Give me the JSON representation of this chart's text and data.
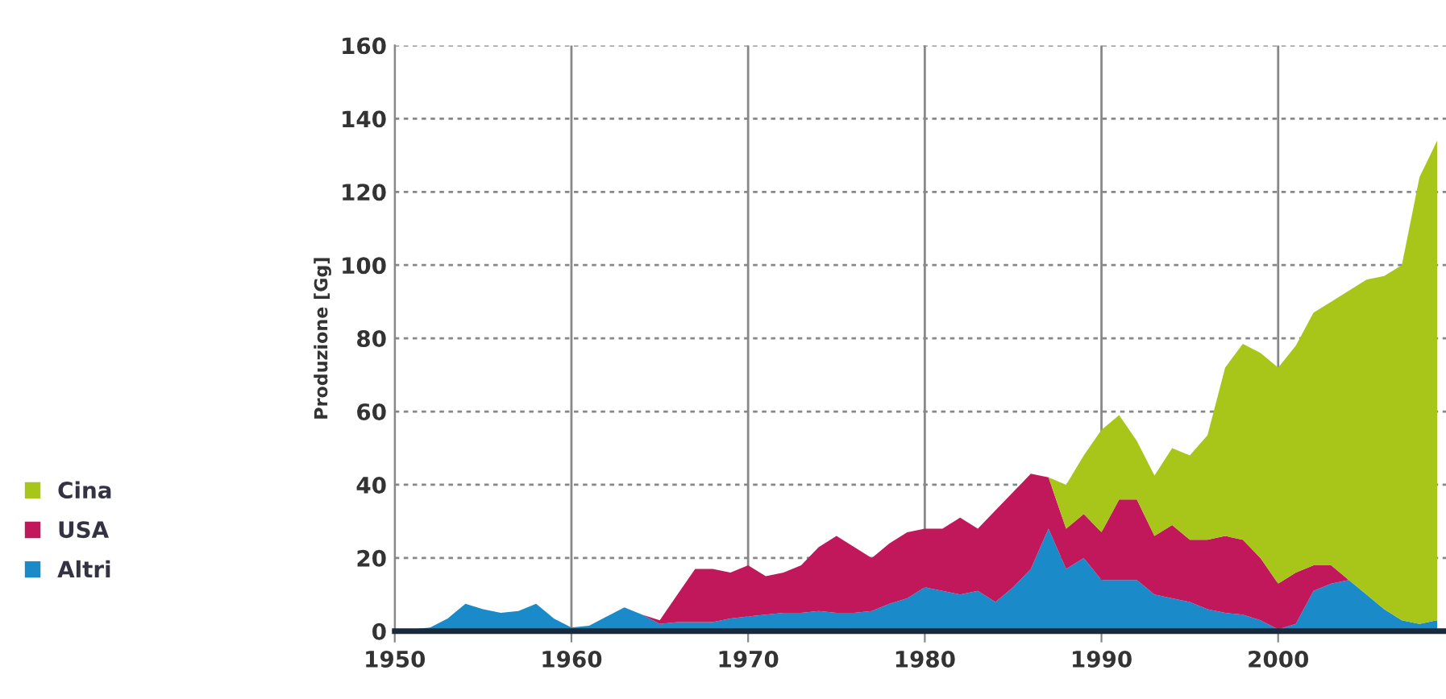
{
  "chart_data": {
    "type": "area",
    "stacked": true,
    "ylabel": "Produzione [Gg]",
    "x": [
      1950,
      1951,
      1952,
      1953,
      1954,
      1955,
      1956,
      1957,
      1958,
      1959,
      1960,
      1961,
      1962,
      1963,
      1964,
      1965,
      1966,
      1967,
      1968,
      1969,
      1970,
      1971,
      1972,
      1973,
      1974,
      1975,
      1976,
      1977,
      1978,
      1979,
      1980,
      1981,
      1982,
      1983,
      1984,
      1985,
      1986,
      1987,
      1988,
      1989,
      1990,
      1991,
      1992,
      1993,
      1994,
      1995,
      1996,
      1997,
      1998,
      1999,
      2000,
      2001,
      2002,
      2003,
      2004,
      2005,
      2006,
      2007,
      2008,
      2009
    ],
    "series": [
      {
        "name": "Altri",
        "color": "#1a8ac8",
        "values": [
          0.5,
          0.5,
          1,
          3.5,
          7.5,
          6,
          5,
          5.5,
          7.5,
          3.5,
          1,
          1.5,
          4,
          6.5,
          4.5,
          2,
          2.5,
          2.5,
          2.5,
          3.5,
          4,
          4.5,
          5,
          5,
          5.5,
          5,
          5,
          5.5,
          7.5,
          9,
          12,
          11,
          10,
          11,
          8,
          12,
          17,
          28,
          17,
          20,
          14,
          14,
          14,
          10,
          9,
          8,
          6,
          5,
          4.5,
          3,
          0.5,
          2,
          11,
          13,
          14,
          10,
          6,
          3,
          2,
          3
        ]
      },
      {
        "name": "USA",
        "color": "#c0185a",
        "values": [
          0,
          0,
          0,
          0,
          0,
          0,
          0,
          0,
          0,
          0,
          0,
          0,
          0,
          0,
          0,
          1,
          7.5,
          14.5,
          14.5,
          12.5,
          14,
          10.5,
          11,
          13,
          17.5,
          21,
          18,
          14.5,
          16.5,
          18,
          16,
          17,
          21,
          17,
          25,
          26,
          26,
          14,
          11,
          12,
          13,
          22,
          22,
          16,
          20,
          17,
          19,
          21,
          20.5,
          17,
          12.5,
          14,
          7,
          5,
          0,
          0,
          0,
          0,
          0,
          0
        ]
      },
      {
        "name": "Cina",
        "color": "#a8c51a",
        "values": [
          0,
          0,
          0,
          0,
          0,
          0,
          0,
          0,
          0,
          0,
          0,
          0,
          0,
          0,
          0,
          0,
          0,
          0,
          0,
          0,
          0,
          0,
          0,
          0,
          0,
          0,
          0,
          0,
          0,
          0,
          0,
          0,
          0,
          0,
          0,
          0,
          0,
          0,
          12,
          16,
          28,
          23,
          16,
          16.5,
          21,
          23,
          28.5,
          46,
          53.5,
          56,
          59,
          62,
          69,
          72,
          79,
          86,
          91,
          97,
          122,
          131
        ]
      }
    ],
    "xlim": [
      1950,
      2009.5
    ],
    "xticks": [
      1950,
      1960,
      1970,
      1980,
      1990,
      2000
    ],
    "ylim": [
      0,
      160
    ],
    "yticks": [
      0,
      20,
      40,
      60,
      80,
      100,
      120,
      140,
      160
    ],
    "grid": true,
    "legend": "left"
  }
}
